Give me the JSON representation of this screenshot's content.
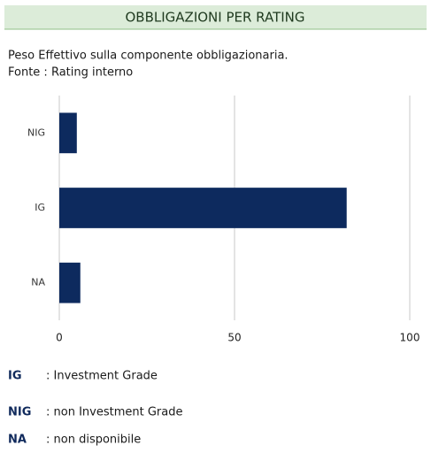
{
  "chart_data": {
    "type": "bar",
    "orientation": "horizontal",
    "title": "OBBLIGAZIONI PER RATING",
    "subtitle": "Peso Effettivo sulla componente obbligazionaria.",
    "source": "Fonte : Rating interno",
    "categories": [
      "NIG",
      "IG",
      "NA"
    ],
    "values": [
      5,
      82,
      6
    ],
    "color": "#0d2a5e",
    "xlim": [
      0,
      100
    ],
    "xticks": [
      0,
      50,
      100
    ],
    "grid": true,
    "notes": [
      {
        "abbr": "IG",
        "text": ": Investment  Grade"
      },
      {
        "abbr": "NIG",
        "text": ": non Investment  Grade"
      },
      {
        "abbr": "NA",
        "text": ": non disponibile"
      }
    ]
  }
}
